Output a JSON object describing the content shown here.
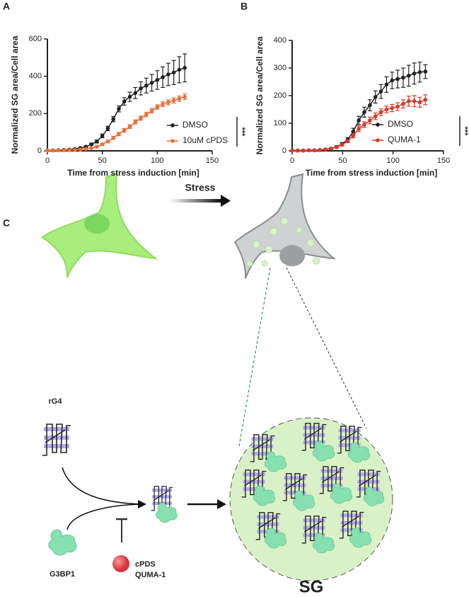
{
  "panel_labels": [
    "A",
    "B",
    "C"
  ],
  "chart_data": [
    {
      "type": "line",
      "x_label": "Time from stress induction [min]",
      "y_label": "Normalized SG area/Cell area",
      "x": [
        0,
        5,
        10,
        15,
        20,
        25,
        30,
        35,
        40,
        45,
        50,
        55,
        60,
        65,
        70,
        75,
        80,
        85,
        90,
        95,
        100,
        105,
        110,
        115,
        120,
        125
      ],
      "series": [
        {
          "name": "DMSO",
          "color": "#222222",
          "values": [
            2,
            3,
            4,
            5,
            7,
            10,
            15,
            22,
            35,
            50,
            80,
            120,
            170,
            225,
            265,
            290,
            310,
            335,
            350,
            365,
            380,
            395,
            410,
            420,
            435,
            445
          ],
          "errors": [
            1,
            1,
            1,
            1,
            2,
            2,
            3,
            4,
            6,
            8,
            10,
            12,
            14,
            16,
            20,
            25,
            30,
            35,
            40,
            45,
            50,
            55,
            60,
            65,
            70,
            75
          ]
        },
        {
          "name": "10uM cPDS",
          "color": "#e8703a",
          "values": [
            2,
            2,
            3,
            3,
            4,
            5,
            7,
            10,
            15,
            22,
            35,
            50,
            70,
            90,
            110,
            130,
            155,
            175,
            195,
            215,
            235,
            250,
            260,
            270,
            280,
            290
          ],
          "errors": [
            1,
            1,
            1,
            1,
            1,
            2,
            2,
            3,
            4,
            5,
            6,
            7,
            8,
            9,
            10,
            10,
            11,
            11,
            12,
            12,
            12,
            13,
            13,
            14,
            14,
            15
          ]
        }
      ],
      "xlim": [
        0,
        150
      ],
      "xticks": [
        0,
        50,
        100,
        150
      ],
      "ylim": [
        0,
        600
      ],
      "yticks": [
        0,
        200,
        400,
        600
      ],
      "legend": "lower right",
      "significance": "***"
    },
    {
      "type": "line",
      "x_label": "Time from stress induction [min]",
      "y_label": "Normalized SG area/Cell area",
      "x": [
        0,
        5.5,
        11,
        16.5,
        22,
        27.5,
        33,
        38.5,
        44,
        49.5,
        55,
        60.5,
        66,
        71.5,
        77,
        82.5,
        88,
        93.5,
        99,
        104.5,
        110,
        115.5,
        121,
        126.5,
        132
      ],
      "series": [
        {
          "name": "DMSO",
          "color": "#222222",
          "values": [
            1,
            1,
            1,
            2,
            2,
            3,
            5,
            8,
            14,
            25,
            40,
            70,
            110,
            140,
            165,
            195,
            215,
            240,
            255,
            260,
            265,
            272,
            280,
            285,
            287
          ],
          "errors": [
            1,
            1,
            1,
            1,
            1,
            2,
            2,
            3,
            4,
            5,
            8,
            12,
            15,
            18,
            20,
            22,
            25,
            28,
            30,
            32,
            35,
            38,
            38,
            36,
            25
          ]
        },
        {
          "name": "QUMA-1",
          "color": "#d63a2a",
          "values": [
            1,
            1,
            1,
            2,
            2,
            3,
            5,
            8,
            13,
            22,
            35,
            55,
            80,
            95,
            110,
            125,
            140,
            150,
            155,
            160,
            170,
            180,
            180,
            176,
            185
          ],
          "errors": [
            1,
            1,
            1,
            1,
            1,
            1,
            2,
            2,
            3,
            4,
            5,
            8,
            10,
            10,
            12,
            12,
            12,
            12,
            13,
            14,
            15,
            18,
            20,
            18,
            18
          ]
        }
      ],
      "xlim": [
        0,
        150
      ],
      "xticks": [
        0,
        50,
        100,
        150
      ],
      "ylim": [
        0,
        400
      ],
      "yticks": [
        0,
        100,
        200,
        300,
        400
      ],
      "legend": "lower right",
      "significance": "***"
    }
  ],
  "diagram": {
    "stress_label": "Stress",
    "rg4_label": "rG4",
    "g3bp1_label": "G3BP1",
    "inhibitors": [
      "cPDS",
      "QUMA-1"
    ],
    "sg_label": "SG"
  }
}
